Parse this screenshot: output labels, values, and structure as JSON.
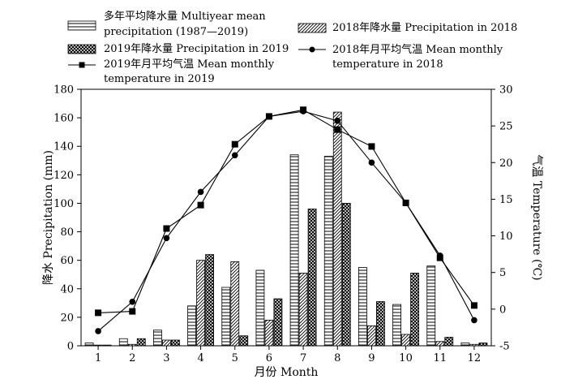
{
  "chart_data": {
    "type": "bar",
    "title": "",
    "xlabel": "月份 Month",
    "ylabel_left": "降水 Precipitation (mm)",
    "ylabel_right": "气温 Temperature (℃)",
    "categories": [
      "1",
      "2",
      "3",
      "4",
      "5",
      "6",
      "7",
      "8",
      "9",
      "10",
      "11",
      "12"
    ],
    "y_left_lim": [
      0,
      180
    ],
    "y_left_ticks": [
      "0",
      "20",
      "40",
      "60",
      "80",
      "100",
      "120",
      "140",
      "160",
      "180"
    ],
    "y_right_lim": [
      -5,
      30
    ],
    "y_right_ticks": [
      "-5",
      "0",
      "5",
      "10",
      "15",
      "20",
      "25",
      "30"
    ],
    "grid": false,
    "legend_position": "top",
    "bar_series": [
      {
        "name": "多年平均降水量 Multiyear mean precipitation (1987—2019)",
        "pattern": "hlines",
        "values": [
          2,
          5,
          11,
          28,
          41,
          53,
          134,
          133,
          55,
          29,
          56,
          2
        ]
      },
      {
        "name": "2018年降水量  Precipitation in 2018",
        "pattern": "diag",
        "values": [
          0.5,
          1,
          4,
          60,
          59,
          18,
          51,
          164,
          14,
          8,
          3,
          1
        ]
      },
      {
        "name": "2019年降水量 Precipitation in 2019",
        "pattern": "cross",
        "values": [
          0.5,
          5,
          4,
          64,
          7,
          33,
          96,
          100,
          31,
          51,
          6,
          2
        ]
      }
    ],
    "line_series": [
      {
        "name": "2019年月平均气温 Mean monthly temperature in 2019",
        "marker": "square",
        "legend_lines": [
          "2019年月平均气温 Mean monthly",
          "temperature in 2019"
        ],
        "values": [
          -0.5,
          -0.3,
          11,
          14.2,
          22.5,
          26.3,
          27.2,
          24.5,
          22.2,
          14.5,
          7,
          0.5
        ]
      },
      {
        "name": "2018年月平均气温 Mean monthly temperature in 2018",
        "marker": "circle",
        "legend_lines": [
          "2018年月平均气温 Mean monthly",
          "temperature  in 2018"
        ],
        "values": [
          -3,
          1,
          9.7,
          16,
          21,
          26.3,
          27,
          25.7,
          20,
          14.5,
          7.3,
          -1.5
        ]
      }
    ],
    "legend_labels": {
      "multiyear": [
        "多年平均降水量 Multiyear mean",
        "precipitation (1987—2019)"
      ],
      "p2018": "2018年降水量  Precipitation in 2018",
      "p2019": "2019年降水量 Precipitation in 2019"
    }
  }
}
